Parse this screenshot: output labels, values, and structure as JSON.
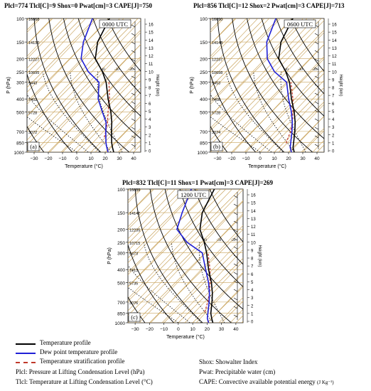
{
  "chart_data": [
    {
      "type": "line",
      "chart_kind": "skew-T log-P sounding",
      "title": "Plcl=774 Tlcl[C]=9 Shox=0 Pwat[cm]=3 CAPE[J]=750",
      "time_label": "0000 UTC",
      "panel_label": "(a)",
      "xlabel": "Temperature (°C)",
      "ylabel": "P (hPa)",
      "ylabel_right": "Height (km)",
      "x_ticks": [
        -30,
        -20,
        -10,
        0,
        10,
        20,
        30,
        40
      ],
      "p_ticks": [
        100,
        150,
        200,
        250,
        300,
        400,
        500,
        700,
        850,
        1000
      ],
      "height_ticks": [
        0,
        1,
        2,
        3,
        4,
        5,
        6,
        7,
        8,
        9,
        10,
        11,
        12,
        13,
        14,
        15,
        16
      ],
      "plevel_heights": [
        "16668",
        "14130",
        "12227",
        "10695",
        "9443",
        "7402",
        "5728",
        "3072",
        "1442"
      ],
      "temperature_profile": {
        "p": [
          1000,
          925,
          850,
          700,
          600,
          500,
          400,
          300,
          250,
          200,
          150,
          100
        ],
        "t": [
          26,
          22,
          18,
          10,
          4,
          -4,
          -15,
          -28,
          -38,
          -52,
          -62,
          -70
        ]
      },
      "dewpoint_profile": {
        "p": [
          1000,
          925,
          850,
          700,
          600,
          500,
          400,
          300,
          250,
          200,
          150,
          100
        ],
        "t": [
          22,
          18,
          14,
          6,
          0,
          -10,
          -22,
          -33,
          -48,
          -62,
          -72,
          -82
        ]
      },
      "parcel_profile": {
        "p": [
          774,
          700,
          600,
          500,
          400,
          300
        ],
        "t": [
          9,
          6,
          1,
          -6,
          -14,
          -26
        ]
      }
    },
    {
      "type": "line",
      "chart_kind": "skew-T log-P sounding",
      "title": "Plcl=856 Tlcl[C]=12 Shox=2 Pwat[cm]=3 CAPE[J]=713",
      "time_label": "0600 UTC",
      "panel_label": "(b)",
      "xlabel": "Temperature (°C)",
      "ylabel": "P (hPa)",
      "ylabel_right": "Height (km)",
      "x_ticks": [
        -30,
        -20,
        -10,
        0,
        10,
        20,
        30,
        40
      ],
      "p_ticks": [
        100,
        150,
        200,
        250,
        300,
        400,
        500,
        700,
        850,
        1000
      ],
      "height_ticks": [
        0,
        1,
        2,
        3,
        4,
        5,
        6,
        7,
        8,
        9,
        10,
        11,
        12,
        13,
        14,
        15,
        16
      ],
      "plevel_heights": [
        "16690",
        "14148",
        "12237",
        "10698",
        "9453",
        "7408",
        "5728",
        "3074",
        "1474"
      ],
      "temperature_profile": {
        "p": [
          1000,
          925,
          850,
          700,
          600,
          500,
          400,
          300,
          250,
          200,
          150,
          100
        ],
        "t": [
          24,
          20,
          17,
          10,
          4,
          -4,
          -15,
          -28,
          -38,
          -52,
          -62,
          -70
        ]
      },
      "dewpoint_profile": {
        "p": [
          1000,
          925,
          850,
          700,
          600,
          500,
          400,
          300,
          250,
          200,
          150,
          100
        ],
        "t": [
          22,
          18,
          15,
          8,
          2,
          -6,
          -17,
          -30,
          -46,
          -60,
          -72,
          -82
        ]
      },
      "parcel_profile": {
        "p": [
          856,
          700,
          600,
          500,
          400,
          300
        ],
        "t": [
          12,
          7,
          2,
          -5,
          -14,
          -27
        ]
      }
    },
    {
      "type": "line",
      "chart_kind": "skew-T log-P sounding",
      "title": "Plcl=832 Tlcl[C]=11 Shox=1 Pwat[cm]=3 CAPE[J]=269",
      "time_label": "1200 UTC",
      "panel_label": "(c)",
      "xlabel": "Temperature (°C)",
      "ylabel": "P (hPa)",
      "ylabel_right": "Height (km)",
      "x_ticks": [
        -30,
        -20,
        -10,
        0,
        10,
        20,
        30,
        40
      ],
      "p_ticks": [
        100,
        150,
        200,
        250,
        300,
        400,
        500,
        700,
        850,
        1000
      ],
      "height_ticks": [
        0,
        1,
        2,
        3,
        4,
        5,
        6,
        7,
        8,
        9,
        10,
        11,
        12,
        13,
        14,
        15,
        16
      ],
      "plevel_heights": [
        "16689",
        "14147",
        "12235",
        "10715",
        "9473",
        "7413",
        "5735",
        "3076",
        "1471"
      ],
      "temperature_profile": {
        "p": [
          1000,
          925,
          850,
          700,
          600,
          500,
          400,
          300,
          250,
          200,
          150,
          100
        ],
        "t": [
          24,
          20,
          16,
          9,
          3,
          -5,
          -16,
          -29,
          -38,
          -50,
          -60,
          -68
        ]
      },
      "dewpoint_profile": {
        "p": [
          1000,
          925,
          850,
          700,
          600,
          500,
          400,
          300,
          250,
          200,
          150,
          100
        ],
        "t": [
          21,
          17,
          14,
          7,
          1,
          -7,
          -18,
          -32,
          -50,
          -66,
          -74,
          -84
        ]
      },
      "parcel_profile": {
        "p": [
          832,
          700,
          600,
          500,
          400,
          300
        ],
        "t": [
          11,
          6,
          1,
          -6,
          -15,
          -28
        ]
      }
    }
  ],
  "colors": {
    "temperature": "#000000",
    "dewpoint": "#1f1fd6",
    "parcel": "#c0392b",
    "isotherm": "#c8a25a",
    "dry_adiabat": "#000000"
  },
  "legend": {
    "temperature_profile": "Temperature profile",
    "dewpoint_profile": "Dew point temperature profile",
    "stratification_profile": "Temperature stratification profile",
    "plcl_def": "Plcl: Pressure at Lifting Condensation Level (hPa)",
    "tlcl_def": "Tlcl: Temperature at Lifting Condensation Level (°C)",
    "shox_def": "Shox: Showalter Index",
    "pwat_def": "Pwat: Precipitable water (cm)",
    "cape_def": "CAPE: Convective available potential energy",
    "cape_unit": "(J Kg⁻¹)"
  }
}
